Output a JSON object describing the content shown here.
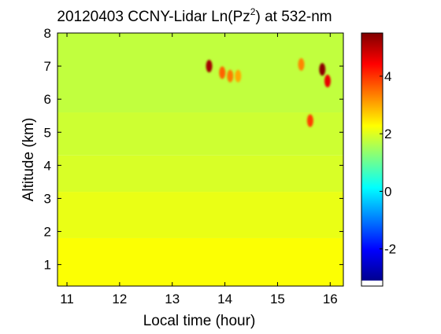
{
  "chart_data": [
    {
      "type": "heatmap",
      "title_main": "20120403 CCNY-Lidar Ln(Pz",
      "title_sup": "2",
      "title_end": ") at 532-nm",
      "xlabel": "Local time (hour)",
      "ylabel": "Altitude (km)",
      "xlim": [
        10.82,
        16.25
      ],
      "ylim": [
        0.35,
        8.0
      ],
      "xticks": [
        "11",
        "12",
        "13",
        "14",
        "15",
        "16"
      ],
      "yticks": [
        "1",
        "2",
        "3",
        "4",
        "5",
        "6",
        "7",
        "8"
      ],
      "colorbar": {
        "clim": [
          -3.1,
          5.5
        ],
        "ticks": [
          "-2",
          "0",
          "2",
          "4"
        ],
        "colormap": "jet"
      },
      "background_layers": [
        {
          "altitude_from": 0.35,
          "altitude_to": 1.8,
          "value": 2.25
        },
        {
          "altitude_from": 1.8,
          "altitude_to": 3.2,
          "value": 2.1
        },
        {
          "altitude_from": 3.2,
          "altitude_to": 4.3,
          "value": 1.95
        },
        {
          "altitude_from": 4.3,
          "altitude_to": 5.6,
          "value": 1.85
        },
        {
          "altitude_from": 5.6,
          "altitude_to": 8.0,
          "value": 1.75
        }
      ],
      "features": [
        {
          "time": 13.7,
          "altitude": 7.0,
          "value": 5.2
        },
        {
          "time": 13.95,
          "altitude": 6.8,
          "value": 3.6
        },
        {
          "time": 14.1,
          "altitude": 6.7,
          "value": 3.4
        },
        {
          "time": 14.25,
          "altitude": 6.7,
          "value": 3.0
        },
        {
          "time": 15.45,
          "altitude": 7.05,
          "value": 3.3
        },
        {
          "time": 15.62,
          "altitude": 5.35,
          "value": 3.9
        },
        {
          "time": 15.85,
          "altitude": 6.9,
          "value": 5.4
        },
        {
          "time": 15.95,
          "altitude": 6.55,
          "value": 4.6
        }
      ]
    }
  ]
}
